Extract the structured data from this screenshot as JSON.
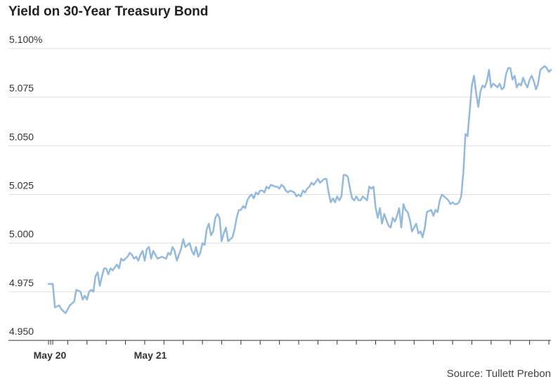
{
  "chart_data": {
    "type": "line",
    "title": "Yield on 30-Year Treasury Bond",
    "source": "Source: Tullett Prebon",
    "ylim": [
      4.95,
      5.1
    ],
    "yticks": [
      {
        "value": 4.95,
        "label": "4.950"
      },
      {
        "value": 4.975,
        "label": "4.975"
      },
      {
        "value": 5.0,
        "label": "5.000"
      },
      {
        "value": 5.025,
        "label": "5.025"
      },
      {
        "value": 5.05,
        "label": "5.050"
      },
      {
        "value": 5.075,
        "label": "5.075"
      },
      {
        "value": 5.1,
        "label": "5.100%"
      }
    ],
    "xlim": [
      0,
      235
    ],
    "xticks": [
      {
        "value": 0,
        "label": "May 20"
      },
      {
        "value": 47,
        "label": "May 21"
      }
    ],
    "grid": true,
    "line_color": "#93b9dc",
    "series": [
      {
        "values": [
          [
            0,
            4.979
          ],
          [
            2,
            4.979
          ],
          [
            3,
            4.967
          ],
          [
            5,
            4.968
          ],
          [
            6,
            4.966
          ],
          [
            8,
            4.964
          ],
          [
            10,
            4.968
          ],
          [
            12,
            4.97
          ],
          [
            13,
            4.976
          ],
          [
            15,
            4.975
          ],
          [
            16,
            4.971
          ],
          [
            17,
            4.973
          ],
          [
            18,
            4.971
          ],
          [
            19,
            4.975
          ],
          [
            20,
            4.976
          ],
          [
            21,
            4.975
          ],
          [
            22,
            4.983
          ],
          [
            23,
            4.985
          ],
          [
            24,
            4.978
          ],
          [
            25,
            4.983
          ],
          [
            26,
            4.987
          ],
          [
            27,
            4.987
          ],
          [
            28,
            4.984
          ],
          [
            29,
            4.987
          ],
          [
            30,
            4.986
          ],
          [
            32,
            4.989
          ],
          [
            33,
            4.987
          ],
          [
            34,
            4.992
          ],
          [
            35,
            4.991
          ],
          [
            37,
            4.993
          ],
          [
            38,
            4.995
          ],
          [
            39,
            4.994
          ],
          [
            40,
            4.992
          ],
          [
            41,
            4.993
          ],
          [
            42,
            4.991
          ],
          [
            43,
            4.994
          ],
          [
            44,
            4.996
          ],
          [
            45,
            4.991
          ],
          [
            46,
            4.997
          ],
          [
            47,
            4.998
          ],
          [
            48,
            4.992
          ],
          [
            49,
            4.996
          ],
          [
            50,
            4.994
          ],
          [
            51,
            4.992
          ],
          [
            53,
            4.993
          ],
          [
            55,
            4.992
          ],
          [
            56,
            4.995
          ],
          [
            57,
            4.994
          ],
          [
            58,
            4.998
          ],
          [
            59,
            4.996
          ],
          [
            60,
            4.991
          ],
          [
            62,
            4.997
          ],
          [
            63,
            5.002
          ],
          [
            64,
            4.998
          ],
          [
            66,
            5.0
          ],
          [
            67,
            4.996
          ],
          [
            68,
            4.994
          ],
          [
            69,
            4.998
          ],
          [
            70,
            4.993
          ],
          [
            71,
            4.995
          ],
          [
            72,
            5.0
          ],
          [
            73,
            4.999
          ],
          [
            74,
            5.007
          ],
          [
            75,
            5.01
          ],
          [
            76,
            5.004
          ],
          [
            77,
            5.006
          ],
          [
            78,
            5.013
          ],
          [
            79,
            5.015
          ],
          [
            80,
            5.013
          ],
          [
            81,
            5.001
          ],
          [
            82,
            5.005
          ],
          [
            83,
            5.008
          ],
          [
            84,
            5.001
          ],
          [
            86,
            5.003
          ],
          [
            87,
            5.007
          ],
          [
            88,
            5.013
          ],
          [
            89,
            5.017
          ],
          [
            90,
            5.017
          ],
          [
            91,
            5.019
          ],
          [
            92,
            5.018
          ],
          [
            93,
            5.022
          ],
          [
            94,
            5.024
          ],
          [
            95,
            5.025
          ],
          [
            96,
            5.023
          ],
          [
            97,
            5.026
          ],
          [
            98,
            5.025
          ],
          [
            99,
            5.027
          ],
          [
            100,
            5.027
          ],
          [
            101,
            5.026
          ],
          [
            102,
            5.029
          ],
          [
            103,
            5.028
          ],
          [
            104,
            5.03
          ],
          [
            106,
            5.029
          ],
          [
            107,
            5.029
          ],
          [
            108,
            5.028
          ],
          [
            109,
            5.03
          ],
          [
            110,
            5.029
          ],
          [
            111,
            5.027
          ],
          [
            112,
            5.026
          ],
          [
            113,
            5.027
          ],
          [
            115,
            5.026
          ],
          [
            116,
            5.024
          ],
          [
            117,
            5.025
          ],
          [
            118,
            5.024
          ],
          [
            119,
            5.027
          ],
          [
            120,
            5.026
          ],
          [
            121,
            5.028
          ],
          [
            122,
            5.029
          ],
          [
            123,
            5.031
          ],
          [
            124,
            5.03
          ],
          [
            126,
            5.033
          ],
          [
            127,
            5.031
          ],
          [
            128,
            5.032
          ],
          [
            129,
            5.033
          ],
          [
            130,
            5.033
          ],
          [
            131,
            5.026
          ],
          [
            132,
            5.021
          ],
          [
            133,
            5.023
          ],
          [
            134,
            5.021
          ],
          [
            135,
            5.024
          ],
          [
            136,
            5.022
          ],
          [
            137,
            5.024
          ],
          [
            138,
            5.035
          ],
          [
            139,
            5.035
          ],
          [
            140,
            5.034
          ],
          [
            141,
            5.028
          ],
          [
            142,
            5.023
          ],
          [
            143,
            5.022
          ],
          [
            144,
            5.024
          ],
          [
            145,
            5.022
          ],
          [
            146,
            5.022
          ],
          [
            147,
            5.024
          ],
          [
            148,
            5.023
          ],
          [
            149,
            5.022
          ],
          [
            150,
            5.029
          ],
          [
            151,
            5.028
          ],
          [
            152,
            5.029
          ],
          [
            153,
            5.018
          ],
          [
            154,
            5.013
          ],
          [
            155,
            5.018
          ],
          [
            156,
            5.01
          ],
          [
            157,
            5.015
          ],
          [
            158,
            5.012
          ],
          [
            159,
            5.009
          ],
          [
            160,
            5.008
          ],
          [
            161,
            5.013
          ],
          [
            162,
            5.011
          ],
          [
            163,
            5.014
          ],
          [
            164,
            5.018
          ],
          [
            165,
            5.008
          ],
          [
            166,
            5.02
          ],
          [
            167,
            5.017
          ],
          [
            168,
            5.016
          ],
          [
            169,
            5.012
          ],
          [
            170,
            5.006
          ],
          [
            171,
            5.008
          ],
          [
            172,
            5.01
          ],
          [
            173,
            5.005
          ],
          [
            174,
            5.006
          ],
          [
            175,
            5.003
          ],
          [
            176,
            5.008
          ],
          [
            177,
            5.016
          ],
          [
            179,
            5.017
          ],
          [
            180,
            5.014
          ],
          [
            181,
            5.017
          ],
          [
            182,
            5.016
          ],
          [
            183,
            5.022
          ],
          [
            184,
            5.025
          ],
          [
            185,
            5.024
          ],
          [
            186,
            5.023
          ],
          [
            187,
            5.022
          ],
          [
            188,
            5.02
          ],
          [
            189,
            5.021
          ],
          [
            190,
            5.02
          ],
          [
            191,
            5.02
          ],
          [
            192,
            5.021
          ],
          [
            193,
            5.024
          ],
          [
            194,
            5.036
          ],
          [
            195,
            5.056
          ],
          [
            196,
            5.055
          ],
          [
            197,
            5.068
          ],
          [
            198,
            5.081
          ],
          [
            199,
            5.086
          ],
          [
            200,
            5.077
          ],
          [
            201,
            5.07
          ],
          [
            202,
            5.078
          ],
          [
            203,
            5.081
          ],
          [
            204,
            5.08
          ],
          [
            205,
            5.083
          ],
          [
            206,
            5.089
          ],
          [
            207,
            5.08
          ],
          [
            208,
            5.082
          ],
          [
            209,
            5.081
          ],
          [
            210,
            5.08
          ],
          [
            211,
            5.082
          ],
          [
            212,
            5.079
          ],
          [
            213,
            5.08
          ],
          [
            214,
            5.087
          ],
          [
            215,
            5.09
          ],
          [
            216,
            5.09
          ],
          [
            217,
            5.084
          ],
          [
            218,
            5.086
          ],
          [
            219,
            5.08
          ],
          [
            220,
            5.082
          ],
          [
            221,
            5.081
          ],
          [
            222,
            5.085
          ],
          [
            223,
            5.082
          ],
          [
            224,
            5.08
          ],
          [
            225,
            5.084
          ],
          [
            226,
            5.086
          ],
          [
            227,
            5.083
          ],
          [
            228,
            5.079
          ],
          [
            229,
            5.082
          ],
          [
            230,
            5.089
          ],
          [
            231,
            5.09
          ],
          [
            232,
            5.091
          ],
          [
            233,
            5.09
          ],
          [
            234,
            5.088
          ],
          [
            235,
            5.089
          ]
        ]
      }
    ]
  }
}
